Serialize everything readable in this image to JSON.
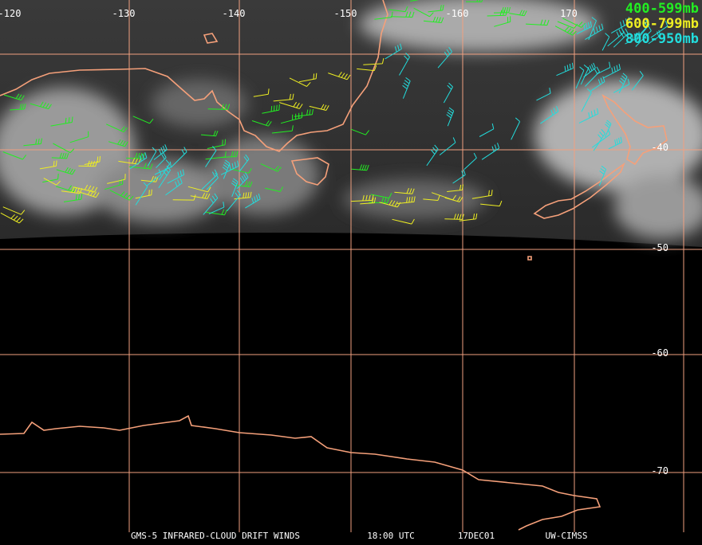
{
  "map": {
    "longitude_labels": [
      "-120",
      "-130",
      "-140",
      "-150",
      "-160",
      "170"
    ],
    "latitude_labels": [
      "-40",
      "-50",
      "-60",
      "-70"
    ],
    "legend": [
      {
        "label": "400-599mb",
        "color": "#22ee22"
      },
      {
        "label": "600-799mb",
        "color": "#eeee22"
      },
      {
        "label": "800-950mb",
        "color": "#22dddd"
      }
    ],
    "footer": [
      "GMS-5 INFRARED-CLOUD DRIFT WINDS",
      "18:00 UTC",
      "17DEC01",
      "UW-CIMSS"
    ]
  }
}
